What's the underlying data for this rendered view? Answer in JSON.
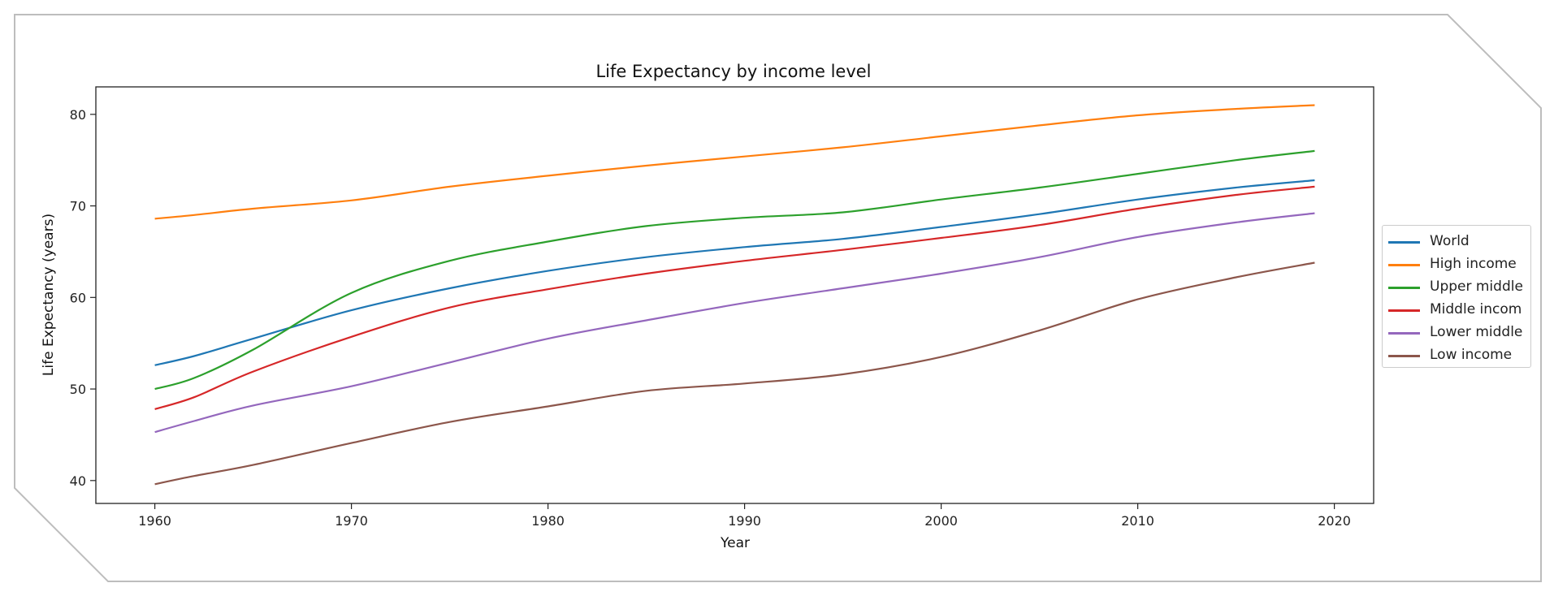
{
  "chart_data": {
    "type": "line",
    "title": "Life Expectancy by income level",
    "xlabel": "Year",
    "ylabel": "Life Expectancy (years)",
    "xlim": [
      1957,
      2022
    ],
    "ylim": [
      37.5,
      83
    ],
    "xticks": [
      1960,
      1970,
      1980,
      1990,
      2000,
      2010,
      2020
    ],
    "yticks": [
      40,
      50,
      60,
      70,
      80
    ],
    "grid": false,
    "legend_position": "center right, outside plot",
    "x": [
      1960,
      1962,
      1965,
      1970,
      1975,
      1980,
      1985,
      1990,
      1995,
      2000,
      2005,
      2010,
      2015,
      2019
    ],
    "series": [
      {
        "name": "World",
        "color": "#1f77b4",
        "values": [
          52.6,
          53.6,
          55.5,
          58.6,
          61.0,
          62.9,
          64.4,
          65.5,
          66.4,
          67.7,
          69.1,
          70.7,
          72.0,
          72.8
        ]
      },
      {
        "name": "High income",
        "color": "#ff7f0e",
        "values": [
          68.6,
          69.0,
          69.7,
          70.6,
          72.1,
          73.3,
          74.4,
          75.4,
          76.4,
          77.6,
          78.8,
          79.9,
          80.6,
          81.0
        ]
      },
      {
        "name": "Upper middle",
        "color": "#2ca02c",
        "values": [
          50.0,
          51.2,
          54.3,
          60.5,
          64.0,
          66.1,
          67.8,
          68.7,
          69.3,
          70.7,
          72.0,
          73.5,
          75.0,
          76.0
        ]
      },
      {
        "name": "Middle incom",
        "color": "#d62728",
        "values": [
          47.8,
          49.1,
          51.9,
          55.7,
          58.9,
          60.9,
          62.6,
          64.0,
          65.2,
          66.5,
          67.9,
          69.7,
          71.2,
          72.1
        ]
      },
      {
        "name": "Lower middle",
        "color": "#9467bd",
        "values": [
          45.3,
          46.5,
          48.2,
          50.3,
          52.9,
          55.5,
          57.5,
          59.4,
          61.0,
          62.6,
          64.4,
          66.6,
          68.2,
          69.2
        ]
      },
      {
        "name": "Low income",
        "color": "#8c564b",
        "values": [
          39.6,
          40.5,
          41.7,
          44.1,
          46.4,
          48.1,
          49.8,
          50.6,
          51.6,
          53.5,
          56.4,
          59.8,
          62.2,
          63.8
        ]
      }
    ]
  }
}
